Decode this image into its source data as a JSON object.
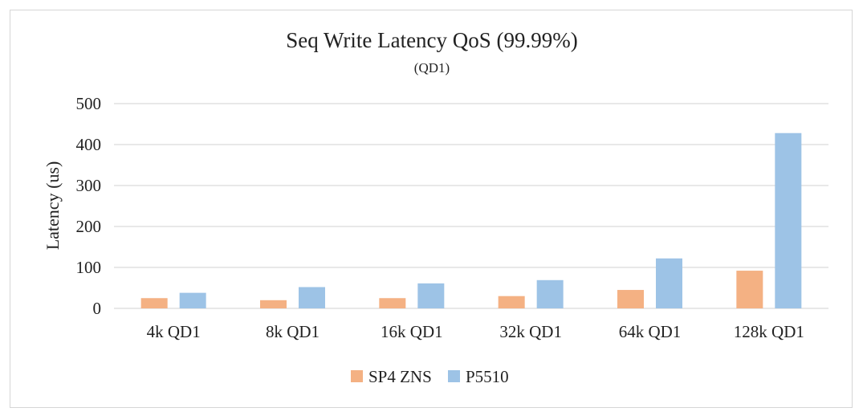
{
  "chart_data": {
    "type": "bar",
    "title": "Seq Write Latency QoS (99.99%)",
    "subtitle": "(QD1)",
    "xlabel": "",
    "ylabel": "Latency  (us)",
    "ylim": [
      0,
      500
    ],
    "yticks": [
      0,
      100,
      200,
      300,
      400,
      500
    ],
    "grid": true,
    "legend_position": "bottom",
    "categories": [
      "4k QD1",
      "8k QD1",
      "16k QD1",
      "32k QD1",
      "64k QD1",
      "128k QD1"
    ],
    "series": [
      {
        "name": "SP4 ZNS",
        "color": "#f4b183",
        "values": [
          25,
          20,
          25,
          30,
          45,
          92
        ]
      },
      {
        "name": "P5510",
        "color": "#9dc3e6",
        "values": [
          38,
          52,
          61,
          69,
          122,
          428
        ]
      }
    ]
  }
}
